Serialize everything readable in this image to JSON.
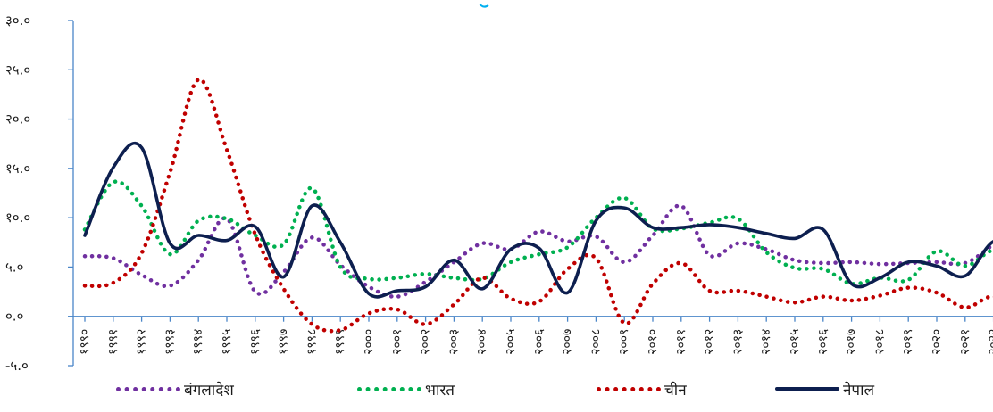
{
  "chart_data": {
    "type": "line",
    "title": "",
    "xlabel": "",
    "ylabel": "",
    "ylim": [
      -5,
      30
    ],
    "y_ticks": [
      "-५.०",
      "०.०",
      "५.०",
      "१०.०",
      "१५.०",
      "२०.०",
      "२५.०",
      "३०.०"
    ],
    "categories": [
      "१९९०",
      "१९९१",
      "१९९२",
      "१९९३",
      "१९९४",
      "१९९५",
      "१९९६",
      "१९९७",
      "१९९८",
      "१९९९",
      "२०००",
      "२००१",
      "२००२",
      "२००३",
      "२००४",
      "२००५",
      "२००६",
      "२००७",
      "२००८",
      "२००९",
      "२०१०",
      "२०११",
      "२०१२",
      "२०१३",
      "२०१४",
      "२०१५",
      "२०१६",
      "२०१७",
      "२०१८",
      "२०१९",
      "२०२०",
      "२०२१",
      "२०२२",
      "२०२३"
    ],
    "series": [
      {
        "name": "बंगलादेश",
        "color": "#7030A0",
        "style": "dotted",
        "values": [
          6.1,
          5.9,
          4.2,
          3.1,
          5.7,
          9.9,
          2.5,
          4.5,
          8.0,
          5.2,
          3.0,
          2.0,
          3.5,
          5.5,
          7.4,
          6.8,
          8.6,
          7.6,
          8.1,
          5.5,
          8.2,
          11.2,
          6.2,
          7.4,
          6.8,
          5.7,
          5.4,
          5.5,
          5.3,
          5.4,
          5.5,
          5.4,
          7.3,
          9.5
        ]
      },
      {
        "name": "भारत",
        "color": "#00B050",
        "style": "dotted",
        "values": [
          8.8,
          13.6,
          11.2,
          6.3,
          9.7,
          9.9,
          8.2,
          7.3,
          13.0,
          5.0,
          3.8,
          3.9,
          4.3,
          3.9,
          3.8,
          5.5,
          6.3,
          7.0,
          10.0,
          12.0,
          8.9,
          8.9,
          9.5,
          9.9,
          6.5,
          4.9,
          4.8,
          3.3,
          3.9,
          3.7,
          6.6,
          5.1,
          6.7,
          5.7
        ]
      },
      {
        "name": "चीन",
        "color": "#C00000",
        "style": "dotted",
        "values": [
          3.1,
          3.4,
          6.4,
          14.6,
          24.0,
          16.9,
          8.3,
          2.8,
          -0.8,
          -1.4,
          0.3,
          0.7,
          -0.8,
          1.2,
          3.9,
          1.8,
          1.5,
          4.8,
          5.9,
          -0.7,
          3.3,
          5.4,
          2.6,
          2.6,
          2.0,
          1.4,
          2.0,
          1.6,
          2.1,
          2.9,
          2.4,
          0.9,
          2.0,
          0.2
        ]
      },
      {
        "name": "नेपाल",
        "color": "#0D1F4F",
        "style": "solid",
        "values": [
          8.2,
          15.1,
          17.1,
          7.4,
          8.2,
          7.7,
          9.1,
          4.0,
          11.2,
          7.5,
          2.3,
          2.6,
          3.0,
          5.7,
          2.8,
          6.8,
          6.9,
          2.4,
          9.7,
          11.0,
          9.0,
          9.0,
          9.3,
          9.0,
          8.4,
          7.9,
          8.8,
          3.3,
          3.9,
          5.5,
          5.1,
          4.1,
          7.6,
          7.1
        ]
      }
    ],
    "grid": false,
    "legend_position": "bottom"
  }
}
